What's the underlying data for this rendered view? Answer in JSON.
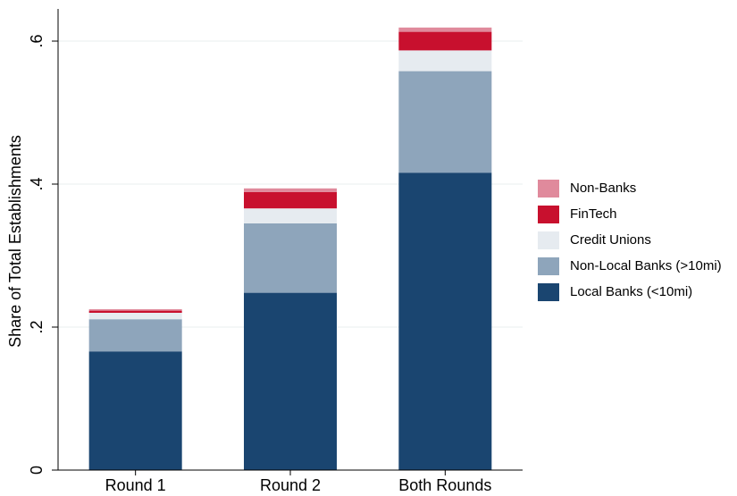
{
  "chart_data": {
    "type": "stacked_bar",
    "y_label": "Share of Total Establishments",
    "categories": [
      "Round 1",
      "Round 2",
      "Both Rounds"
    ],
    "series": [
      {
        "name": "Local Banks (<10mi)",
        "color": "#1a4570",
        "values": [
          0.166,
          0.248,
          0.416
        ]
      },
      {
        "name": "Non-Local Banks (>10mi)",
        "color": "#8ea5bb",
        "values": [
          0.045,
          0.097,
          0.142
        ]
      },
      {
        "name": "Credit Unions",
        "color": "#e6ebf0",
        "values": [
          0.009,
          0.021,
          0.029
        ]
      },
      {
        "name": "FinTech",
        "color": "#c8102e",
        "values": [
          0.003,
          0.023,
          0.026
        ]
      },
      {
        "name": "Non-Banks",
        "color": "#e08a9c",
        "values": [
          0.002,
          0.005,
          0.006
        ]
      }
    ],
    "ylim": [
      0,
      0.645
    ],
    "yticks": [
      0,
      {
        "value": 0.2,
        "label": ".2"
      },
      {
        "value": 0.4,
        "label": ".4"
      },
      {
        "value": 0.6,
        "label": ".6"
      }
    ],
    "grid": true,
    "legend": "right"
  }
}
